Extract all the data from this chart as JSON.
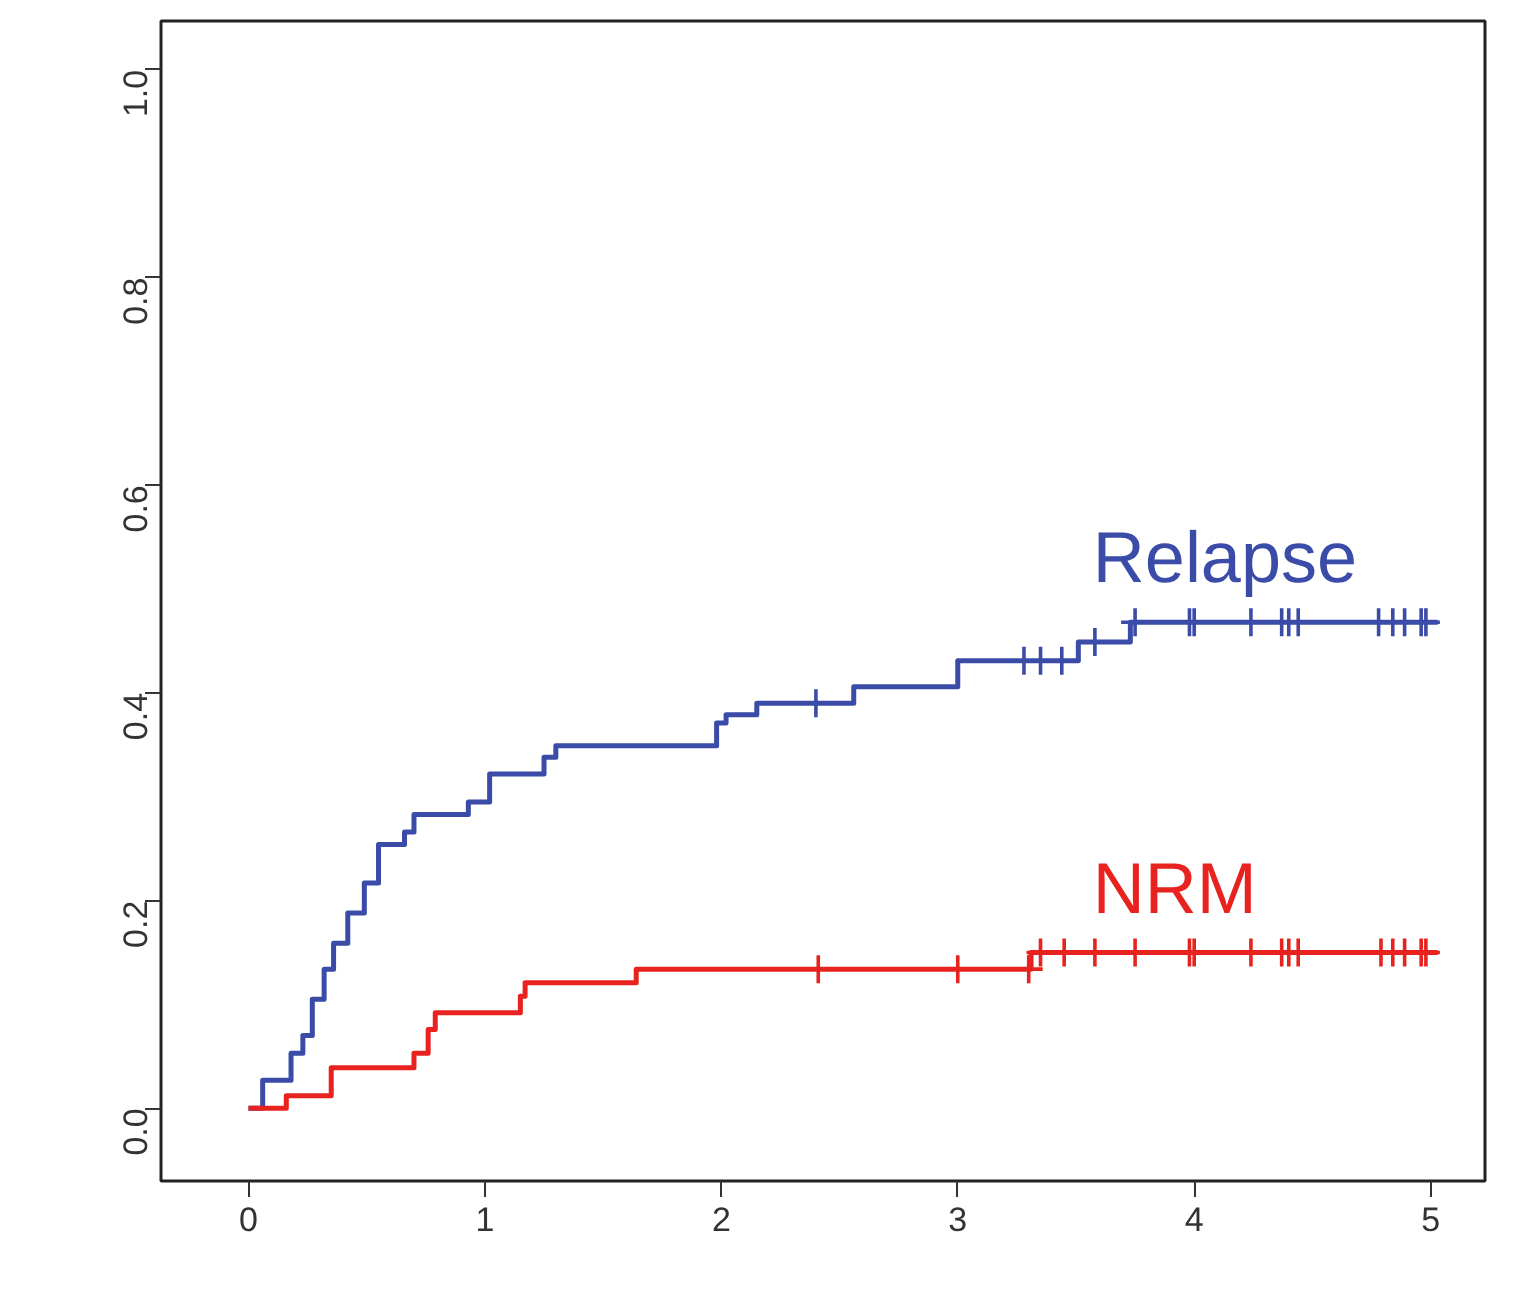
{
  "chart_data": {
    "type": "step",
    "xlim": [
      -0.37,
      5.23
    ],
    "ylim": [
      -0.07,
      1.047
    ],
    "xticks": [
      0,
      1,
      2,
      3,
      4,
      5
    ],
    "yticks": [
      {
        "value": 0,
        "label": "0.0"
      },
      {
        "value": 0.2,
        "label": "0.2"
      },
      {
        "value": 0.4,
        "label": "0.4"
      },
      {
        "value": 0.6,
        "label": "0.6"
      },
      {
        "value": 0.8,
        "label": "0.8"
      },
      {
        "value": 1,
        "label": "1.0"
      }
    ],
    "grid": false,
    "series": [
      {
        "name": "Relapse",
        "color": "#3b4ba8",
        "x": [
          0,
          0.06,
          0.18,
          0.23,
          0.27,
          0.32,
          0.36,
          0.42,
          0.49,
          0.55,
          0.66,
          0.7,
          0.93,
          1.02,
          1.25,
          1.3,
          1.98,
          2.02,
          2.15,
          2.56,
          3.0,
          3.51,
          3.73,
          5.03
        ],
        "values": [
          0,
          0.027,
          0.053,
          0.07,
          0.105,
          0.134,
          0.159,
          0.188,
          0.217,
          0.254,
          0.266,
          0.283,
          0.295,
          0.322,
          0.338,
          0.349,
          0.371,
          0.379,
          0.39,
          0.406,
          0.431,
          0.449,
          0.468,
          0.468
        ]
      },
      {
        "name": "NRM",
        "color": "#e8231f",
        "x": [
          0,
          0.16,
          0.35,
          0.7,
          0.76,
          0.79,
          1.15,
          1.17,
          1.64,
          3.31,
          5.03
        ],
        "values": [
          0,
          0.012,
          0.039,
          0.053,
          0.076,
          0.092,
          0.108,
          0.121,
          0.134,
          0.15,
          0.15
        ]
      },
      {
        "type": "scatter",
        "marker": "cross",
        "color": "#3b4ba8",
        "x": [
          2.4,
          3.28,
          3.35,
          3.44,
          3.58,
          3.75,
          3.98,
          4.0,
          4.24,
          4.37,
          4.4,
          4.44,
          4.78,
          4.84,
          4.89,
          4.96,
          4.98
        ],
        "values": [
          0.39,
          0.431,
          0.431,
          0.431,
          0.449,
          0.468,
          0.468,
          0.468,
          0.468,
          0.468,
          0.468,
          0.468,
          0.468,
          0.468,
          0.468,
          0.468,
          0.468
        ]
      },
      {
        "type": "scatter",
        "marker": "cross",
        "color": "#e8231f",
        "x": [
          2.41,
          3.0,
          3.3,
          3.35,
          3.45,
          3.58,
          3.75,
          3.98,
          4.0,
          4.24,
          4.37,
          4.4,
          4.44,
          4.79,
          4.84,
          4.89,
          4.96,
          4.98
        ],
        "values": [
          0.134,
          0.134,
          0.134,
          0.15,
          0.15,
          0.15,
          0.15,
          0.15,
          0.15,
          0.15,
          0.15,
          0.15,
          0.15,
          0.15,
          0.15,
          0.15,
          0.15,
          0.15
        ]
      }
    ]
  }
}
